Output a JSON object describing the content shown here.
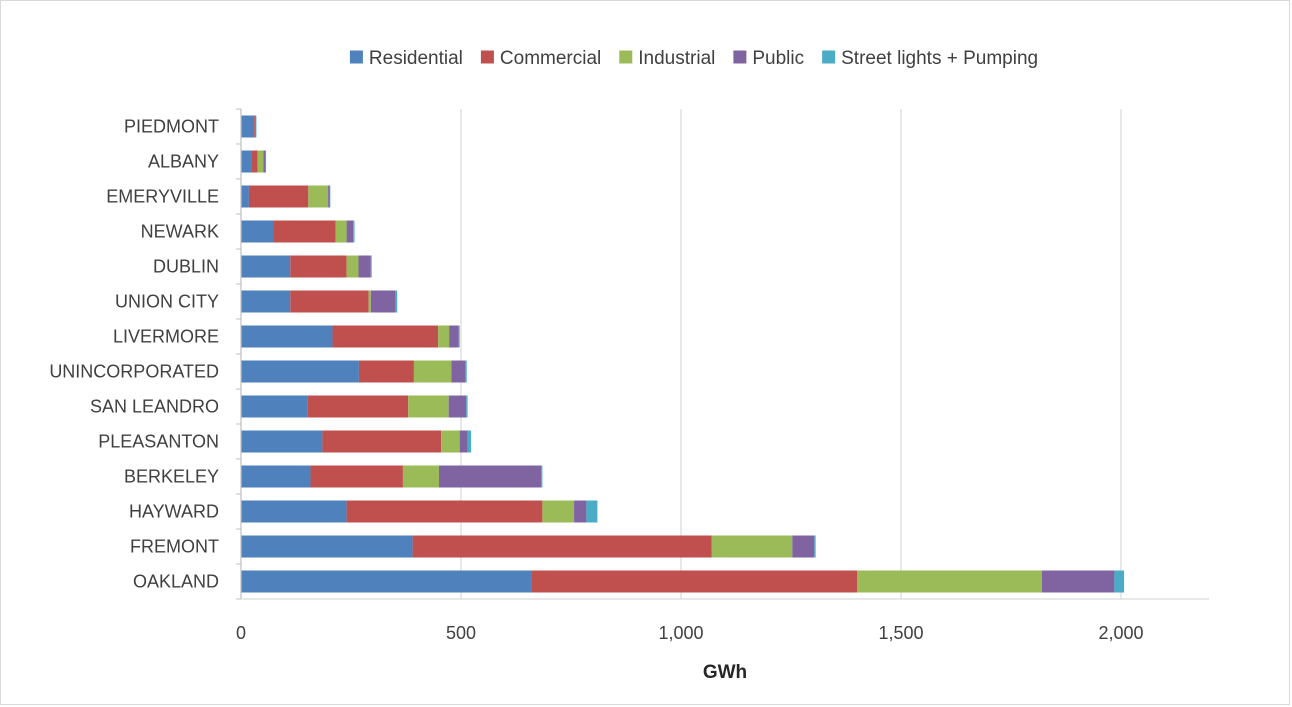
{
  "chart_data": {
    "type": "bar",
    "orientation": "horizontal",
    "stacked": true,
    "categories": [
      "PIEDMONT",
      "ALBANY",
      "EMERYVILLE",
      "NEWARK",
      "DUBLIN",
      "UNION CITY",
      "LIVERMORE",
      "UNINCORPORATED",
      "SAN LEANDRO",
      "PLEASANTON",
      "BERKELEY",
      "HAYWARD",
      "FREMONT",
      "OAKLAND"
    ],
    "series": [
      {
        "name": "Residential",
        "color": "#4f81bd",
        "values": [
          30,
          23,
          18,
          75,
          112,
          112,
          208,
          268,
          152,
          185,
          158,
          240,
          390,
          660
        ]
      },
      {
        "name": "Commercial",
        "color": "#c0504d",
        "values": [
          2,
          15,
          135,
          140,
          128,
          178,
          240,
          125,
          228,
          270,
          210,
          445,
          680,
          740
        ]
      },
      {
        "name": "Industrial",
        "color": "#9bbb59",
        "values": [
          0,
          13,
          45,
          25,
          27,
          5,
          25,
          85,
          92,
          42,
          82,
          72,
          183,
          420
        ]
      },
      {
        "name": "Public",
        "color": "#8064a2",
        "values": [
          2,
          5,
          4,
          15,
          28,
          55,
          22,
          32,
          40,
          18,
          232,
          28,
          50,
          165
        ]
      },
      {
        "name": "Street lights + Pumping",
        "color": "#4bacc6",
        "values": [
          1,
          1,
          1,
          3,
          2,
          5,
          2,
          3,
          3,
          8,
          3,
          25,
          3,
          22
        ]
      }
    ],
    "xlabel": "GWh",
    "ylabel": "",
    "xlim": [
      0,
      2200
    ],
    "xticks": [
      0,
      500,
      1000,
      1500,
      2000
    ],
    "xtick_labels": [
      "0",
      "500",
      "1,000",
      "1,500",
      "2,000"
    ],
    "grid": "vertical major gridlines",
    "legend_position": "top"
  }
}
